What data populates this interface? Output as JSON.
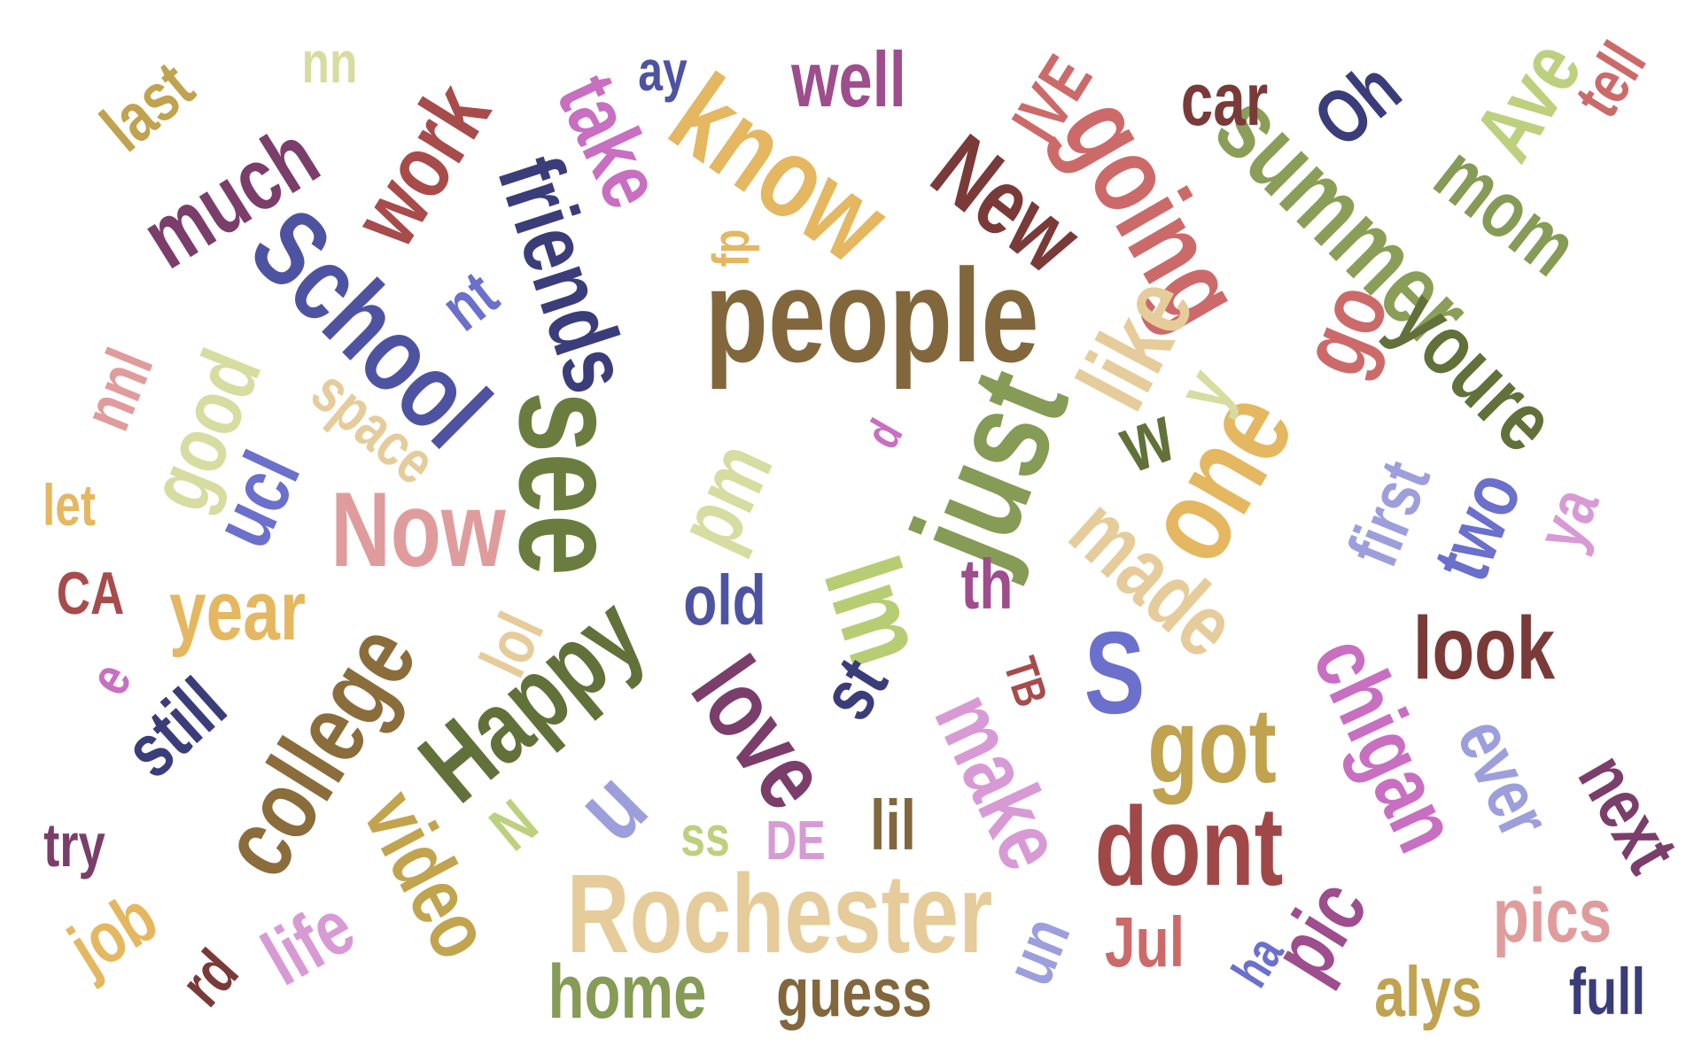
{
  "words": [
    {
      "text": "people",
      "color": "#82673d"
    },
    {
      "text": "Rochester",
      "color": "#e6cc9b"
    },
    {
      "text": "see",
      "color": "#6a7d3e"
    },
    {
      "text": "School",
      "color": "#4e53a1"
    },
    {
      "text": "friends",
      "color": "#3a3d7a"
    },
    {
      "text": "know",
      "color": "#e4b760"
    },
    {
      "text": "just",
      "color": "#869b55"
    },
    {
      "text": "one",
      "color": "#e4b760"
    },
    {
      "text": "Happy",
      "color": "#617139"
    },
    {
      "text": "Now",
      "color": "#e09c9c"
    },
    {
      "text": "college",
      "color": "#8b6d3b"
    },
    {
      "text": "dont",
      "color": "#a04848"
    },
    {
      "text": "going",
      "color": "#cc6a6a"
    },
    {
      "text": "New",
      "color": "#7a3a38"
    },
    {
      "text": "summer",
      "color": "#8b9e58"
    },
    {
      "text": "like",
      "color": "#e6cc9b"
    },
    {
      "text": "made",
      "color": "#e6cc9b"
    },
    {
      "text": "much",
      "color": "#7b3e6b"
    },
    {
      "text": "work",
      "color": "#a84b4b"
    },
    {
      "text": "year",
      "color": "#e4b760"
    },
    {
      "text": "youre",
      "color": "#617139"
    },
    {
      "text": "Im",
      "color": "#b7cd73"
    },
    {
      "text": "love",
      "color": "#7b3e6b"
    },
    {
      "text": "look",
      "color": "#7a3a38"
    },
    {
      "text": "got",
      "color": "#c0a24f"
    },
    {
      "text": "chigan",
      "color": "#c86fc1"
    },
    {
      "text": "video",
      "color": "#c2a44f"
    },
    {
      "text": "make",
      "color": "#d89ad4"
    },
    {
      "text": "take",
      "color": "#c86fc1"
    },
    {
      "text": "good",
      "color": "#d7dca0"
    },
    {
      "text": "pm",
      "color": "#d7dca0"
    },
    {
      "text": "S",
      "color": "#6a70cb"
    },
    {
      "text": "u",
      "color": "#9d9edc"
    },
    {
      "text": "mom",
      "color": "#869b55"
    },
    {
      "text": "Ave",
      "color": "#bdd07e"
    },
    {
      "text": "go",
      "color": "#cc6a6a"
    },
    {
      "text": "ucl",
      "color": "#6a70cb"
    },
    {
      "text": "space",
      "color": "#e6cc9b"
    },
    {
      "text": "still",
      "color": "#3a3d7a"
    },
    {
      "text": "home",
      "color": "#869b55"
    },
    {
      "text": "guess",
      "color": "#82673d"
    },
    {
      "text": "pics",
      "color": "#e09c9c"
    },
    {
      "text": "alys",
      "color": "#c0a24f"
    },
    {
      "text": "pic",
      "color": "#9e4d8d"
    },
    {
      "text": "ever",
      "color": "#9d9edc"
    },
    {
      "text": "next",
      "color": "#7b3e6b"
    },
    {
      "text": "first",
      "color": "#9d9edc"
    },
    {
      "text": "two",
      "color": "#6a70cb"
    },
    {
      "text": "job",
      "color": "#e4b760"
    },
    {
      "text": "life",
      "color": "#d89ad4"
    },
    {
      "text": "old",
      "color": "#4e53a1"
    },
    {
      "text": "lil",
      "color": "#82673d"
    },
    {
      "text": "Jul",
      "color": "#cc6a6a"
    },
    {
      "text": "well",
      "color": "#9e4d8d"
    },
    {
      "text": "car",
      "color": "#7a3a38"
    },
    {
      "text": "IVE",
      "color": "#cc6a6a"
    },
    {
      "text": "Oh",
      "color": "#3a3d7a"
    },
    {
      "text": "tell",
      "color": "#cc6a6a"
    },
    {
      "text": "last",
      "color": "#c0a24f"
    },
    {
      "text": "nn",
      "color": "#d7dca0"
    },
    {
      "text": "ay",
      "color": "#4e53a1"
    },
    {
      "text": "lol",
      "color": "#e6cc9b"
    },
    {
      "text": "st",
      "color": "#3a3d7a"
    },
    {
      "text": "th",
      "color": "#9e4d8d"
    },
    {
      "text": "nt",
      "color": "#6a70cb"
    },
    {
      "text": "w",
      "color": "#617139"
    },
    {
      "text": "y",
      "color": "#d7dca0"
    },
    {
      "text": "nnl",
      "color": "#e09c9c"
    },
    {
      "text": "let",
      "color": "#e4b760"
    },
    {
      "text": "CA",
      "color": "#a84b4b"
    },
    {
      "text": "e",
      "color": "#c86fc1"
    },
    {
      "text": "try",
      "color": "#7b3e6b"
    },
    {
      "text": "rd",
      "color": "#7a3a38"
    },
    {
      "text": "full",
      "color": "#3a3d7a"
    },
    {
      "text": "ha",
      "color": "#6a70cb"
    },
    {
      "text": "un",
      "color": "#9d9edc"
    },
    {
      "text": "TB",
      "color": "#a84b4b"
    },
    {
      "text": "DE",
      "color": "#d89ad4"
    },
    {
      "text": "ss",
      "color": "#bdd07e"
    },
    {
      "text": "N",
      "color": "#bdd07e"
    },
    {
      "text": "ya",
      "color": "#d89ad4"
    },
    {
      "text": "fp",
      "color": "#e4b760"
    },
    {
      "text": "d",
      "color": "#c86fc1"
    }
  ]
}
